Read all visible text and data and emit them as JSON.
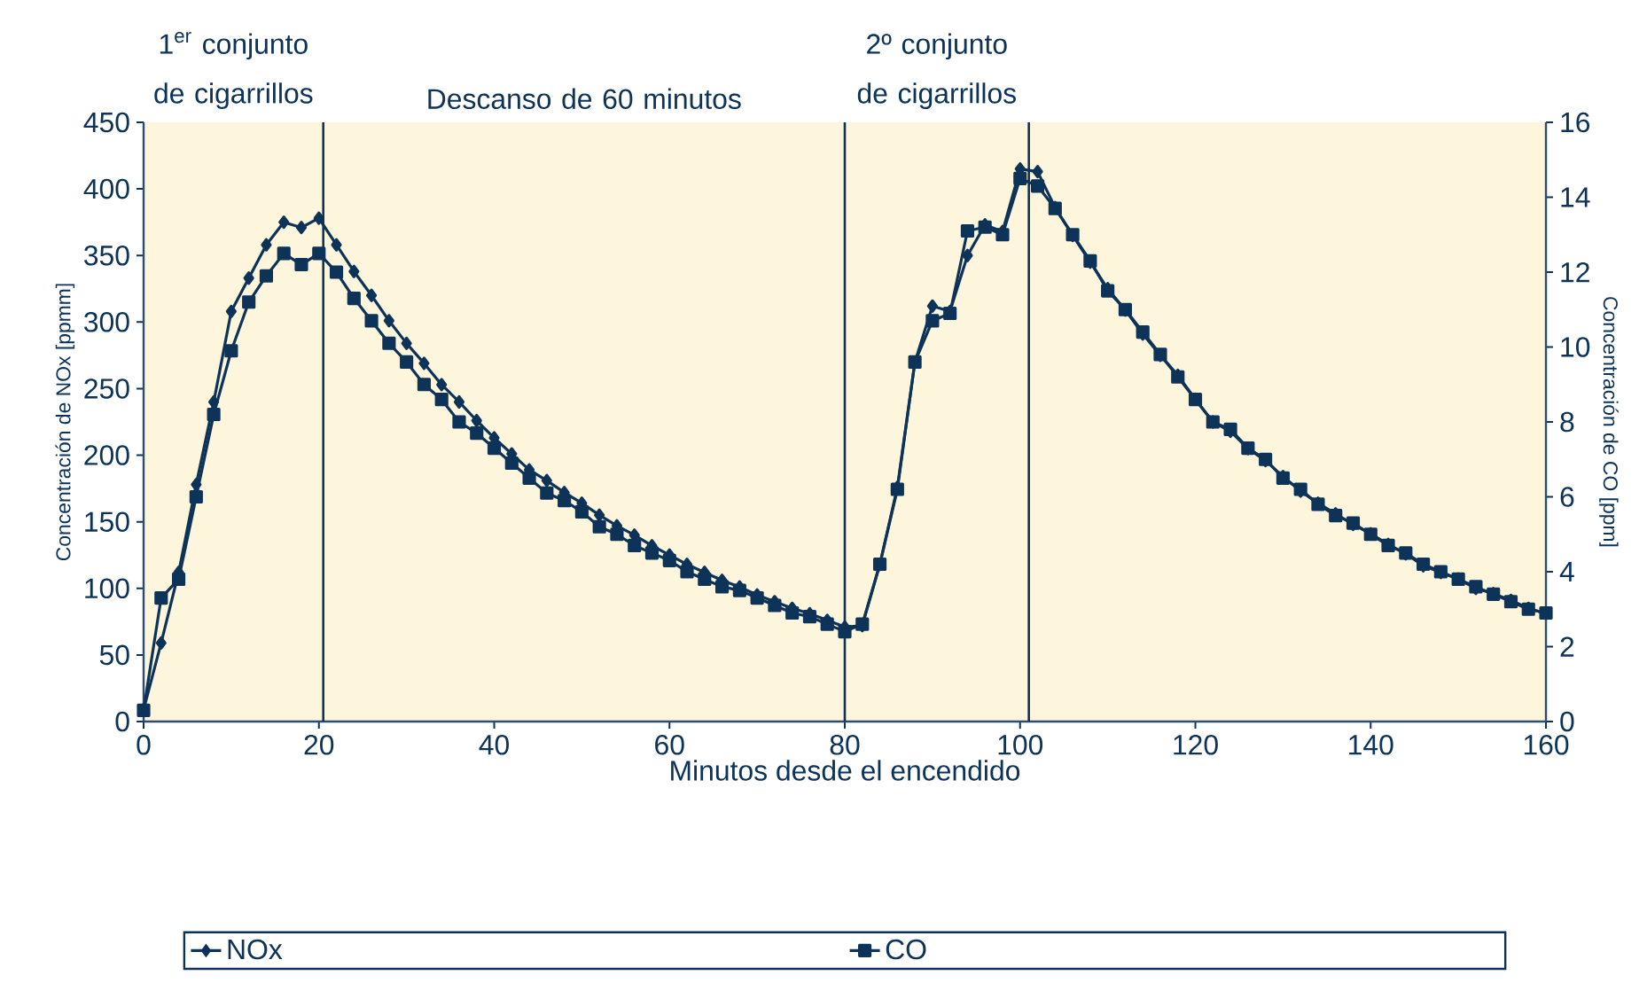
{
  "chart_data": {
    "type": "line",
    "xlabel": "Minutos desde el encendido",
    "ylabel": "Concentración de NOx [ppmm]",
    "y2label": "Concentración de CO [ppm]",
    "x": [
      0,
      2,
      4,
      6,
      8,
      10,
      12,
      14,
      16,
      18,
      20,
      22,
      24,
      26,
      28,
      30,
      32,
      34,
      36,
      38,
      40,
      42,
      44,
      46,
      48,
      50,
      52,
      54,
      56,
      58,
      60,
      62,
      64,
      66,
      68,
      70,
      72,
      74,
      76,
      78,
      80,
      82,
      84,
      86,
      88,
      90,
      92,
      94,
      96,
      98,
      100,
      102,
      104,
      106,
      108,
      110,
      112,
      114,
      116,
      118,
      120,
      122,
      124,
      126,
      128,
      130,
      132,
      134,
      136,
      138,
      140,
      142,
      144,
      146,
      148,
      150,
      152,
      154,
      156,
      158,
      160
    ],
    "series": [
      {
        "name": "NOx",
        "color": "#0d3358",
        "marker": "diamond",
        "values": [
          9,
          59,
          112,
          178,
          240,
          308,
          333,
          358,
          375,
          371,
          378,
          358,
          338,
          320,
          301,
          284,
          269,
          253,
          240,
          226,
          213,
          201,
          189,
          181,
          172,
          164,
          155,
          147,
          140,
          132,
          125,
          118,
          112,
          106,
          101,
          95,
          90,
          85,
          81,
          76,
          71,
          72,
          118,
          176,
          270,
          312,
          308,
          350,
          373,
          368,
          415,
          413,
          386,
          365,
          345,
          325,
          309,
          291,
          275,
          260,
          242,
          225,
          218,
          205,
          196,
          184,
          173,
          164,
          156,
          148,
          141,
          133,
          126,
          117,
          112,
          107,
          100,
          96,
          91,
          85,
          81
        ]
      },
      {
        "name": "CO",
        "color": "#0d3358",
        "marker": "square",
        "axis": "y2",
        "values": [
          0.3,
          3.3,
          3.8,
          6.0,
          8.2,
          9.9,
          11.2,
          11.9,
          12.5,
          12.2,
          12.5,
          12.0,
          11.3,
          10.7,
          10.1,
          9.6,
          9.0,
          8.6,
          8.0,
          7.7,
          7.3,
          6.9,
          6.5,
          6.1,
          5.9,
          5.6,
          5.2,
          5.0,
          4.7,
          4.5,
          4.3,
          4.0,
          3.8,
          3.6,
          3.5,
          3.3,
          3.1,
          2.9,
          2.8,
          2.6,
          2.4,
          2.6,
          4.2,
          6.2,
          9.6,
          10.7,
          10.9,
          13.1,
          13.2,
          13.0,
          14.5,
          14.3,
          13.7,
          13.0,
          12.3,
          11.5,
          11.0,
          10.4,
          9.8,
          9.2,
          8.6,
          8.0,
          7.8,
          7.3,
          7.0,
          6.5,
          6.2,
          5.8,
          5.5,
          5.3,
          5.0,
          4.7,
          4.5,
          4.2,
          4.0,
          3.8,
          3.6,
          3.4,
          3.2,
          3.0,
          2.9
        ]
      }
    ],
    "xlim": [
      0,
      160
    ],
    "xticks": [
      0,
      20,
      40,
      60,
      80,
      100,
      120,
      140,
      160
    ],
    "ylim": [
      0,
      450
    ],
    "yticks": [
      0,
      50,
      100,
      150,
      200,
      250,
      300,
      350,
      400,
      450
    ],
    "y2lim": [
      0,
      16
    ],
    "y2ticks": [
      0,
      2,
      4,
      6,
      8,
      10,
      12,
      14,
      16
    ],
    "ref_lines": [
      {
        "axis": "x",
        "value": 20.5
      },
      {
        "axis": "x",
        "value": 80
      },
      {
        "axis": "x",
        "value": 101
      }
    ],
    "annotations": [
      "1$^{er}$ conjunto de cigarrillos",
      "Descanso de 60 minutos",
      "2º conjunto de cigarrillos"
    ],
    "grid": false,
    "legend": "bottom",
    "line_style": "solid"
  }
}
